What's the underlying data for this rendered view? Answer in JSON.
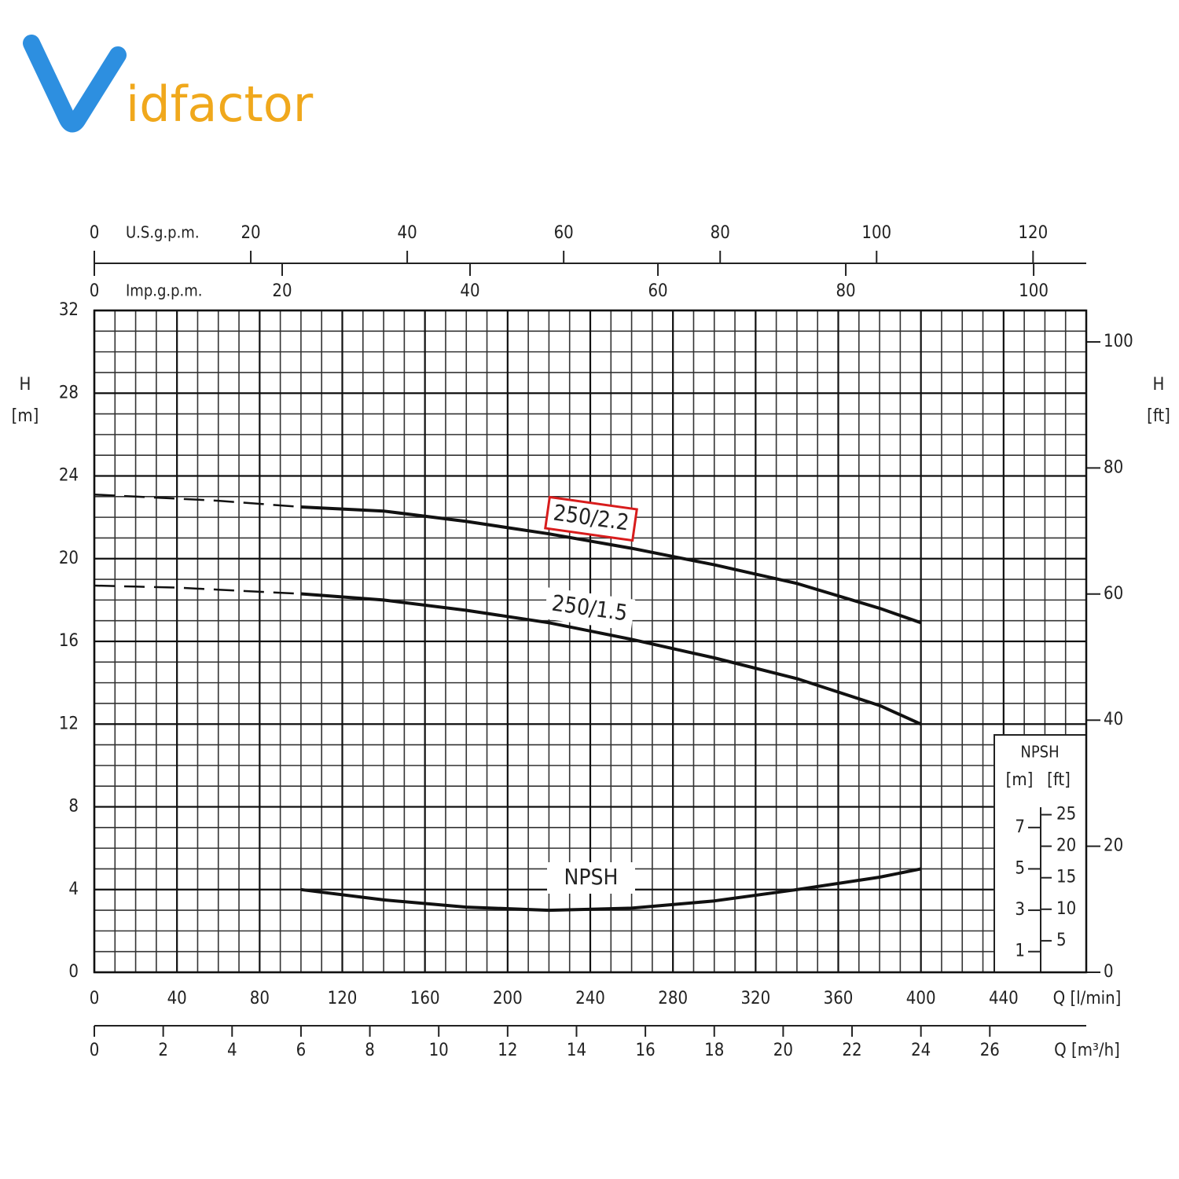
{
  "logo": {
    "initial": "V",
    "rest": "idfactor"
  },
  "chart_data": {
    "type": "line",
    "x": [
      0,
      20,
      40,
      60,
      80,
      100,
      140,
      180,
      220,
      260,
      300,
      340,
      380,
      400
    ],
    "xlim": [
      0,
      480
    ],
    "xticks": [
      0,
      40,
      80,
      120,
      160,
      200,
      240,
      280,
      320,
      360,
      400,
      440
    ],
    "x_label": "Q [l/min]",
    "ylim": [
      0,
      32
    ],
    "yticks": [
      0,
      4,
      8,
      12,
      16,
      20,
      24,
      28,
      32
    ],
    "y_label": [
      "H",
      "[m]"
    ],
    "y2lim": [
      0,
      104.99
    ],
    "y2ticks": [
      0,
      20,
      40,
      60,
      80,
      100
    ],
    "y2_label": [
      "H",
      "[ft]"
    ],
    "grid": true,
    "series": [
      {
        "name": "250/2.2",
        "color": "#111111",
        "highlight": "#d81c1c",
        "values": [
          null,
          null,
          null,
          null,
          null,
          22.5,
          22.3,
          21.8,
          21.2,
          20.5,
          19.7,
          18.8,
          17.6,
          16.9
        ]
      },
      {
        "color": "#111111",
        "dashed": true,
        "values": [
          23.1,
          23.0,
          22.9,
          22.8,
          22.65,
          22.5,
          null,
          null,
          null,
          null,
          null,
          null,
          null,
          null
        ]
      },
      {
        "name": "250/1.5",
        "color": "#111111",
        "values": [
          null,
          null,
          null,
          null,
          null,
          18.3,
          18.0,
          17.5,
          16.9,
          16.1,
          15.2,
          14.2,
          12.9,
          12.0
        ]
      },
      {
        "color": "#111111",
        "dashed": true,
        "values": [
          18.7,
          18.65,
          18.6,
          18.5,
          18.4,
          18.3,
          null,
          null,
          null,
          null,
          null,
          null,
          null,
          null
        ]
      },
      {
        "name": "NPSH",
        "color": "#111111",
        "values": [
          null,
          null,
          null,
          null,
          null,
          4.0,
          3.5,
          3.15,
          3.0,
          3.1,
          3.45,
          4.0,
          4.6,
          5.0
        ]
      }
    ],
    "top_axes": [
      {
        "label": "U.S.g.p.m.",
        "lim": [
          0,
          126.8
        ],
        "ticks": [
          0,
          20,
          40,
          60,
          80,
          100,
          120
        ]
      },
      {
        "label": "Imp.g.p.m.",
        "lim": [
          0,
          105.6
        ],
        "ticks": [
          0,
          20,
          40,
          60,
          80,
          100
        ]
      }
    ],
    "bottom_axis2": {
      "label": "Q [m³/h]",
      "lim": [
        0,
        28.8
      ],
      "ticks": [
        0,
        2,
        4,
        6,
        8,
        10,
        12,
        14,
        16,
        18,
        20,
        22,
        24,
        26
      ]
    },
    "npsh_inset": {
      "title": "NPSH",
      "unit_m": "[m]",
      "unit_ft": "[ft]",
      "m_ticks": [
        1,
        3,
        5,
        7
      ],
      "ft_ticks": [
        5,
        10,
        15,
        20,
        25
      ]
    }
  }
}
